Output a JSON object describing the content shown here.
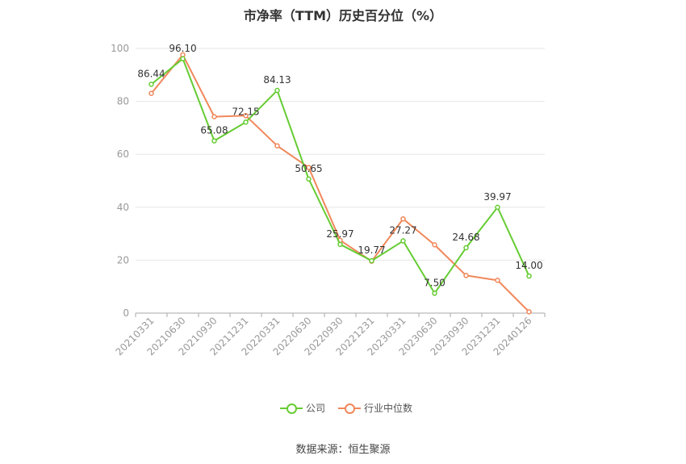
{
  "chart_data": {
    "type": "line",
    "title": "市净率（TTM）历史百分位（%）",
    "categories": [
      "20210331",
      "20210630",
      "20210930",
      "20211231",
      "20220331",
      "20220630",
      "20220930",
      "20221231",
      "20230331",
      "20230630",
      "20230930",
      "20231231",
      "20240126"
    ],
    "ylim": [
      0,
      100
    ],
    "yticks": [
      0,
      20,
      40,
      60,
      80,
      100
    ],
    "grid": true,
    "legend_position": "bottom",
    "series": [
      {
        "name": "公司",
        "color": "#66cc33",
        "values": [
          86.44,
          96.1,
          65.08,
          72.15,
          84.13,
          50.65,
          25.97,
          19.77,
          27.27,
          7.5,
          24.68,
          39.97,
          14.0
        ],
        "labels": [
          "86.44",
          "96.10",
          "65.08",
          "72.15",
          "84.13",
          "50.65",
          "25.97",
          "19.77",
          "27.27",
          "7.50",
          "24.68",
          "39.97",
          "14.00"
        ]
      },
      {
        "name": "行业中位数",
        "color": "#f0875a",
        "values": [
          83.0,
          97.6,
          74.2,
          74.6,
          63.2,
          55.0,
          27.5,
          19.6,
          35.6,
          25.8,
          14.2,
          12.4,
          0.5
        ]
      }
    ]
  },
  "source_text": "数据来源：恒生聚源"
}
